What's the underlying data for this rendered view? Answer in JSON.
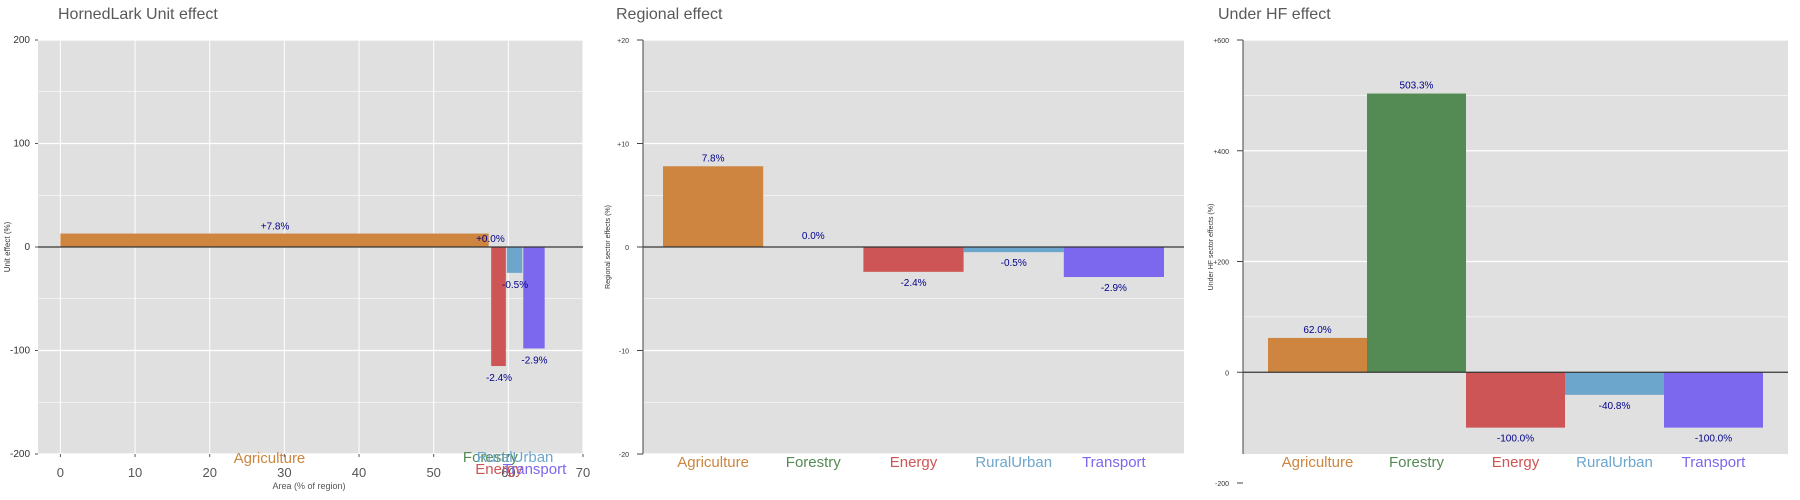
{
  "colors": {
    "Agriculture": "#cd853f",
    "Forestry": "#548b54",
    "Energy": "#cd5555",
    "RuralUrban": "#6ca6cd",
    "Transport": "#7b68ee",
    "panel_bg": "#e0e0e0",
    "grid": "#ffffff",
    "value_label": "#00008b",
    "title": "#595959"
  },
  "chart_data": [
    {
      "type": "bar",
      "title": "HornedLark Unit effect",
      "xlabel": "Area (% of region)",
      "ylabel": "Unit effect (%)",
      "ylim": [
        -200,
        200
      ],
      "yticks": [
        -200,
        -100,
        0,
        100,
        200
      ],
      "ytick_labels": [
        "-200",
        "-100",
        "0",
        "100",
        "200"
      ],
      "xlim": [
        -3,
        70
      ],
      "xticks": [
        0,
        10,
        20,
        30,
        40,
        50,
        60,
        70
      ],
      "xtick_labels": [
        "0",
        "10",
        "20",
        "30",
        "40",
        "50",
        "60",
        "70"
      ],
      "grid": true,
      "series": [
        {
          "sector": "Agriculture",
          "x_start": 0,
          "x_end": 57.5,
          "value": 13,
          "label": "+7.8%"
        },
        {
          "sector": "Forestry",
          "x_start": 57.5,
          "x_end": 57.7,
          "value": 0,
          "label": "+0.0%"
        },
        {
          "sector": "Energy",
          "x_start": 57.7,
          "x_end": 59.8,
          "value": -115,
          "label": "-2.4%"
        },
        {
          "sector": "RuralUrban",
          "x_start": 59.8,
          "x_end": 62.0,
          "value": -25,
          "label": "-0.5%"
        },
        {
          "sector": "Transport",
          "x_start": 62.0,
          "x_end": 65.0,
          "value": -98,
          "label": "-2.9%"
        }
      ],
      "category_labels": [
        {
          "text": "Agriculture",
          "sector": "Agriculture"
        },
        {
          "text": "Forestry",
          "sector": "Forestry"
        },
        {
          "text": "Energy",
          "sector": "Energy"
        },
        {
          "text": "RuralUrban",
          "sector": "RuralUrban"
        },
        {
          "text": "Transport",
          "sector": "Transport"
        }
      ]
    },
    {
      "type": "bar",
      "title": "Regional effect",
      "xlabel": "",
      "ylabel": "Regional sector effects (%)",
      "ylim": [
        -20,
        20
      ],
      "yticks": [
        -20,
        -10,
        0,
        10,
        20
      ],
      "ytick_labels": [
        "-20",
        "-10",
        "0",
        "+10",
        "+20"
      ],
      "grid": true,
      "categories": [
        "Agriculture",
        "Forestry",
        "Energy",
        "RuralUrban",
        "Transport"
      ],
      "values": [
        7.8,
        0.0,
        -2.4,
        -0.5,
        -2.9
      ],
      "labels": [
        "7.8%",
        "0.0%",
        "-2.4%",
        "-0.5%",
        "-2.9%"
      ]
    },
    {
      "type": "bar",
      "title": "Under HF effect",
      "xlabel": "",
      "ylabel": "Under HF sector effects (%)",
      "ylim": [
        -200,
        600
      ],
      "yticks": [
        -200,
        0,
        200,
        400,
        600
      ],
      "ytick_labels": [
        "-200",
        "0",
        "+200",
        "+400",
        "+600"
      ],
      "grid": true,
      "categories": [
        "Agriculture",
        "Forestry",
        "Energy",
        "RuralUrban",
        "Transport"
      ],
      "values": [
        62.0,
        503.3,
        -100.0,
        -40.8,
        -100.0
      ],
      "labels": [
        "62.0%",
        "503.3%",
        "-100.0%",
        "-40.8%",
        "-100.0%"
      ]
    }
  ]
}
